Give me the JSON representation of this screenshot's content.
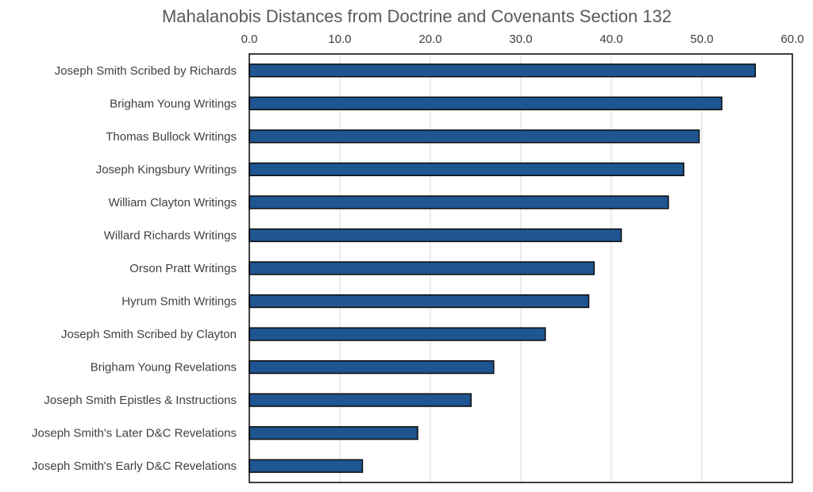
{
  "chart_data": {
    "type": "bar",
    "orientation": "horizontal",
    "title": "Mahalanobis Distances from Doctrine and Covenants Section 132",
    "xlabel": "",
    "ylabel": "",
    "xlim": [
      0,
      60
    ],
    "x_ticks": [
      "0.0",
      "10.0",
      "20.0",
      "30.0",
      "40.0",
      "50.0",
      "60.0"
    ],
    "x_axis_position": "top",
    "grid": "vertical",
    "bar_color": "#1f5590",
    "categories": [
      "Joseph Smith Scribed by Richards",
      "Brigham Young Writings",
      "Thomas Bullock Writings",
      "Joseph Kingsbury Writings",
      "William Clayton Writings",
      "Willard Richards Writings",
      "Orson Pratt Writings",
      "Hyrum Smith Writings",
      "Joseph Smith Scribed by Clayton",
      "Brigham Young Revelations",
      "Joseph Smith Epistles & Instructions",
      "Joseph Smith's Later D&C Revelations",
      "Joseph Smith's Early D&C Revelations"
    ],
    "values": [
      55.9,
      52.2,
      49.7,
      48.0,
      46.3,
      41.1,
      38.1,
      37.5,
      32.7,
      27.0,
      24.5,
      18.6,
      12.5
    ]
  }
}
